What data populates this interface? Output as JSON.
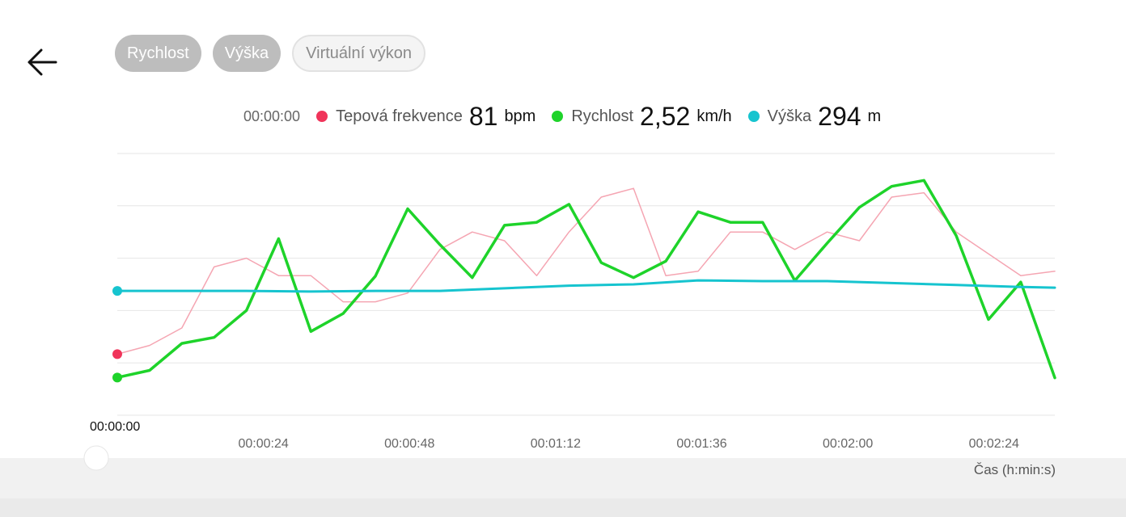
{
  "chips": [
    {
      "label": "Rychlost",
      "active": true
    },
    {
      "label": "Výška",
      "active": true
    },
    {
      "label": "Virtuální výkon",
      "active": false
    }
  ],
  "legend": {
    "time": "00:00:00",
    "items": [
      {
        "label": "Tepová frekvence",
        "value": "81",
        "unit": "bpm",
        "color": "#f0345a"
      },
      {
        "label": "Rychlost",
        "value": "2,52",
        "unit": "km/h",
        "color": "#1ed32a"
      },
      {
        "label": "Výška",
        "value": "294",
        "unit": "m",
        "color": "#16c4cf"
      }
    ]
  },
  "cursor_time": "00:00:00",
  "axis_title": "Čas (h:min:s)",
  "icons": {
    "back": "arrow-left-icon",
    "scrubber": "slider-handle"
  },
  "chart_data": {
    "type": "line",
    "x_unit": "seconds",
    "x_range": [
      0,
      154
    ],
    "xticks": [
      "00:00:24",
      "00:00:48",
      "00:01:12",
      "00:01:36",
      "00:02:00",
      "00:02:24"
    ],
    "grid": true,
    "gridlines": 6,
    "series": [
      {
        "name": "Tepová frekvence",
        "color": "#f5a5b2",
        "x": [
          0,
          5.3,
          10.6,
          15.9,
          21.2,
          26.5,
          31.8,
          37.1,
          42.4,
          47.7,
          53,
          58.3,
          63.6,
          68.9,
          74.2,
          79.5,
          84.8,
          90.1,
          95.4,
          100.7,
          106,
          111.3,
          116.6,
          121.9,
          127.2,
          132.5,
          137.8,
          143.1,
          148.4,
          154
        ],
        "values": [
          81,
          82,
          84,
          91,
          92,
          90,
          90,
          87,
          87,
          88,
          93,
          95,
          94,
          90,
          95,
          99,
          100,
          90,
          90.5,
          95,
          95,
          93,
          95,
          94,
          99,
          99.5,
          95,
          92.5,
          90,
          90.5
        ]
      },
      {
        "name": "Rychlost",
        "color": "#1ed32a",
        "x": [
          0,
          5.3,
          10.6,
          15.9,
          21.2,
          26.5,
          31.8,
          37.1,
          42.4,
          47.7,
          53,
          58.3,
          63.6,
          68.9,
          74.2,
          79.5,
          84.8,
          90.1,
          95.4,
          100.7,
          106,
          111.3,
          116.6,
          121.9,
          127.2,
          132.5,
          137.8,
          143.1,
          148.4,
          154
        ],
        "values": [
          2.52,
          3.0,
          4.8,
          5.2,
          7.0,
          11.8,
          5.6,
          6.8,
          9.3,
          13.8,
          11.4,
          9.2,
          12.7,
          12.9,
          14.1,
          10.2,
          9.2,
          10.3,
          13.6,
          12.9,
          12.9,
          9.0,
          11.5,
          13.9,
          15.3,
          15.7,
          12.0,
          6.4,
          8.9,
          2.5
        ]
      },
      {
        "name": "Výška",
        "color": "#16c4cf",
        "x": [
          0,
          10.6,
          21.2,
          31.8,
          42.4,
          53,
          63.6,
          74.2,
          84.8,
          95.4,
          106,
          116.6,
          127.2,
          137.8,
          148.4,
          154
        ],
        "values": [
          294,
          294,
          294,
          293.9,
          294,
          294,
          294.4,
          294.8,
          295,
          295.6,
          295.5,
          295.5,
          295.2,
          294.9,
          294.6,
          294.5
        ]
      }
    ]
  }
}
